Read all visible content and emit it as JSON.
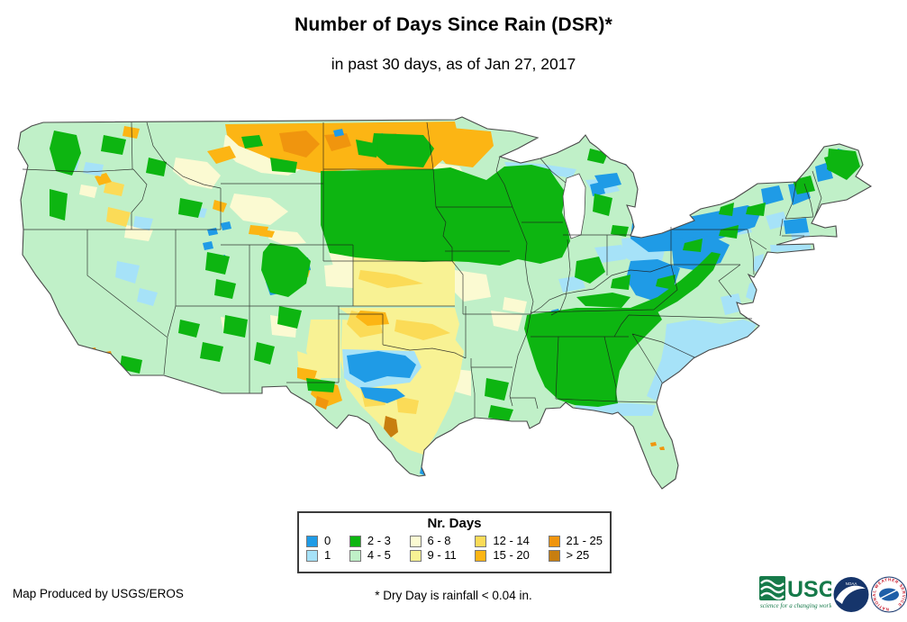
{
  "title": "Number of Days Since Rain (DSR)*",
  "subtitle": "in past 30 days, as of Jan 27, 2017",
  "legend": {
    "title": "Nr. Days",
    "entries": [
      {
        "label": "0",
        "color": "#1f9be6"
      },
      {
        "label": "1",
        "color": "#a6e2f8"
      },
      {
        "label": "2 - 3",
        "color": "#0db511"
      },
      {
        "label": "4 - 5",
        "color": "#c0f0c8"
      },
      {
        "label": "6 - 8",
        "color": "#fbfad2"
      },
      {
        "label": "9 - 11",
        "color": "#f8f294"
      },
      {
        "label": "12 - 14",
        "color": "#fbdb57"
      },
      {
        "label": "15 - 20",
        "color": "#fcb514"
      },
      {
        "label": "21 - 25",
        "color": "#f0950e"
      },
      {
        "label": "> 25",
        "color": "#c87e0f"
      }
    ]
  },
  "footer": {
    "credit": "Map Produced by USGS/EROS",
    "note": "* Dry Day is rainfall < 0.04 in."
  },
  "logos": {
    "usgs": {
      "name": "USGS",
      "tagline": "science for a changing world",
      "color": "#167a4a"
    },
    "noaa": {
      "name": "NOAA",
      "color": "#16356b"
    },
    "nws": {
      "name": "NATIONAL WEATHER SERVICE",
      "ring_color": "#cc2233"
    }
  },
  "chart_data": {
    "type": "heatmap",
    "title": "Number of Days Since Rain (DSR)*",
    "subtitle": "in past 30 days, as of Jan 27, 2017",
    "region": "Contiguous United States",
    "legend_title": "Nr. Days",
    "categories": [
      "0",
      "1",
      "2 - 3",
      "4 - 5",
      "6 - 8",
      "9 - 11",
      "12 - 14",
      "15 - 20",
      "21 - 25",
      "> 25"
    ],
    "category_colors": [
      "#1f9be6",
      "#a6e2f8",
      "#0db511",
      "#c0f0c8",
      "#fbfad2",
      "#f8f294",
      "#fbdb57",
      "#fcb514",
      "#f0950e",
      "#c87e0f"
    ],
    "regional_pattern": [
      {
        "area": "Montana / North Dakota / northern Minnesota",
        "days_since_rain": "15 - 25"
      },
      {
        "area": "South Dakota / Nebraska / Iowa / Wisconsin / southern Minnesota",
        "days_since_rain": "2 - 3"
      },
      {
        "area": "Kansas / Oklahoma / most of Texas / eastern New Mexico",
        "days_since_rain": "6 - 14"
      },
      {
        "area": "West-central Texas pocket",
        "days_since_rain": "0"
      },
      {
        "area": "Laredo, Texas pocket",
        "days_since_rain": "> 25"
      },
      {
        "area": "West Coast / Great Basin / Florida",
        "days_since_rain": "4 - 5"
      },
      {
        "area": "Rockies / Appalachians / Alabama-Georgia-Tennessee",
        "days_since_rain": "2 - 3"
      },
      {
        "area": "Ohio Valley / Pennsylvania / New York / New England",
        "days_since_rain": "0 - 1"
      },
      {
        "area": "Coastal Carolinas",
        "days_since_rain": "1"
      }
    ]
  }
}
